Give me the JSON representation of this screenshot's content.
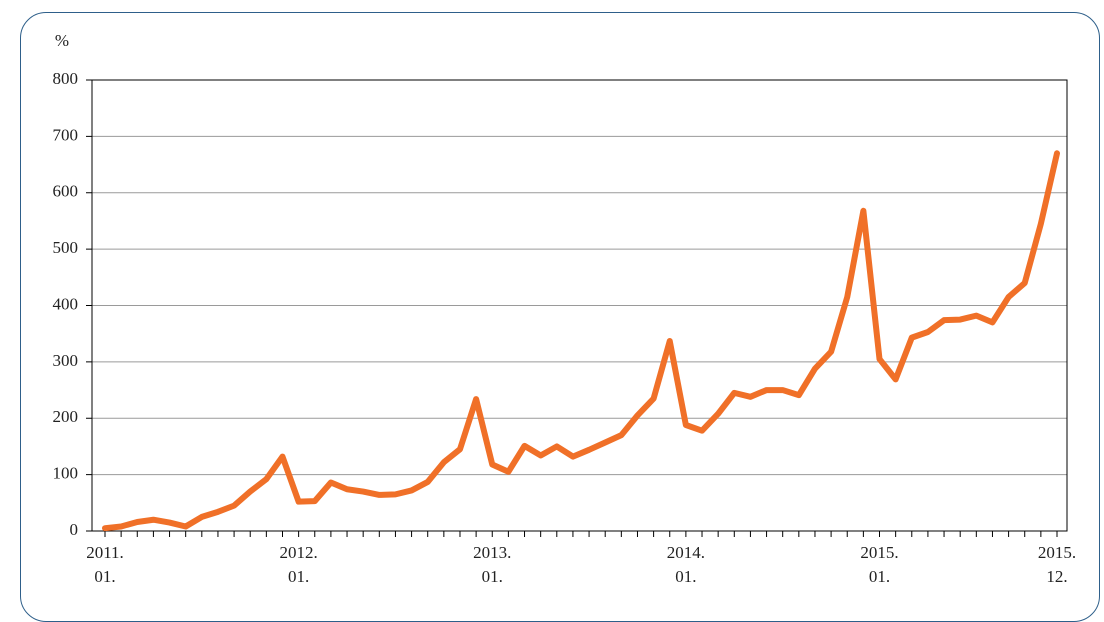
{
  "chart_data": {
    "type": "line",
    "y_label": "%",
    "categories": [
      "2011.\n01.",
      null,
      null,
      null,
      null,
      null,
      null,
      null,
      null,
      null,
      null,
      null,
      "2012.\n01.",
      null,
      null,
      null,
      null,
      null,
      null,
      null,
      null,
      null,
      null,
      null,
      "2013.\n01.",
      null,
      null,
      null,
      null,
      null,
      null,
      null,
      null,
      null,
      null,
      null,
      "2014.\n01.",
      null,
      null,
      null,
      null,
      null,
      null,
      null,
      null,
      null,
      null,
      null,
      "2015.\n01.",
      null,
      null,
      null,
      null,
      null,
      null,
      null,
      null,
      null,
      null,
      "2015.\n12."
    ],
    "series": [
      {
        "name": null,
        "color": "#f07028",
        "values": [
          5,
          8,
          16,
          20,
          15,
          8,
          25,
          34,
          45,
          70,
          92,
          132,
          52,
          53,
          86,
          74,
          70,
          64,
          65,
          72,
          87,
          122,
          145,
          234,
          118,
          105,
          151,
          134,
          150,
          132,
          144,
          157,
          170,
          205,
          235,
          337,
          188,
          178,
          208,
          245,
          238,
          250,
          250,
          241,
          288,
          318,
          415,
          568,
          305,
          269,
          343,
          353,
          374,
          375,
          382,
          370,
          415,
          440,
          545,
          670
        ]
      }
    ],
    "ylim": [
      0,
      800
    ],
    "yticks": [
      0,
      100,
      200,
      300,
      400,
      500,
      600,
      700,
      800
    ],
    "grid": true
  }
}
